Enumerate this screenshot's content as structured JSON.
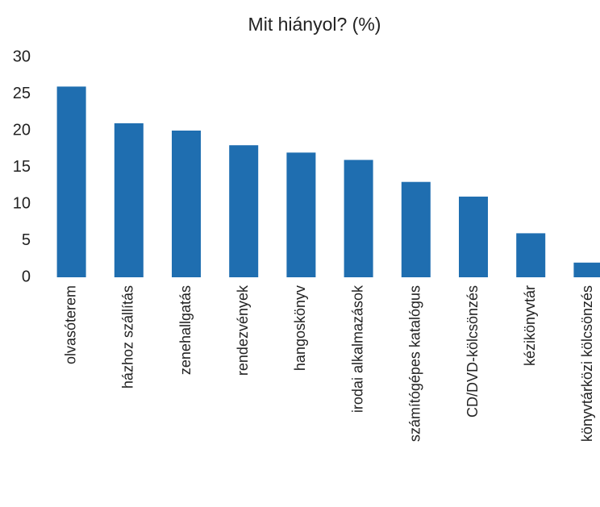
{
  "chart_data": {
    "type": "bar",
    "title": "Mit hiányol? (%)",
    "categories": [
      "olvasóterem",
      "házhoz szállítás",
      "zenehallgatás",
      "rendezvények",
      "hangoskönyv",
      "irodai alkalmazások",
      "számítógépes katalógus",
      "CD/DVD-kölcsönzés",
      "kézikönyvtár",
      "könyvtárközi kölcsönzés"
    ],
    "values": [
      26,
      21,
      20,
      18,
      17,
      16,
      13,
      11,
      6,
      2
    ],
    "color": "#1f6eb0",
    "ylim": [
      0,
      30
    ],
    "yticks": [
      0,
      5,
      10,
      15,
      20,
      25,
      30
    ],
    "grid": false
  }
}
